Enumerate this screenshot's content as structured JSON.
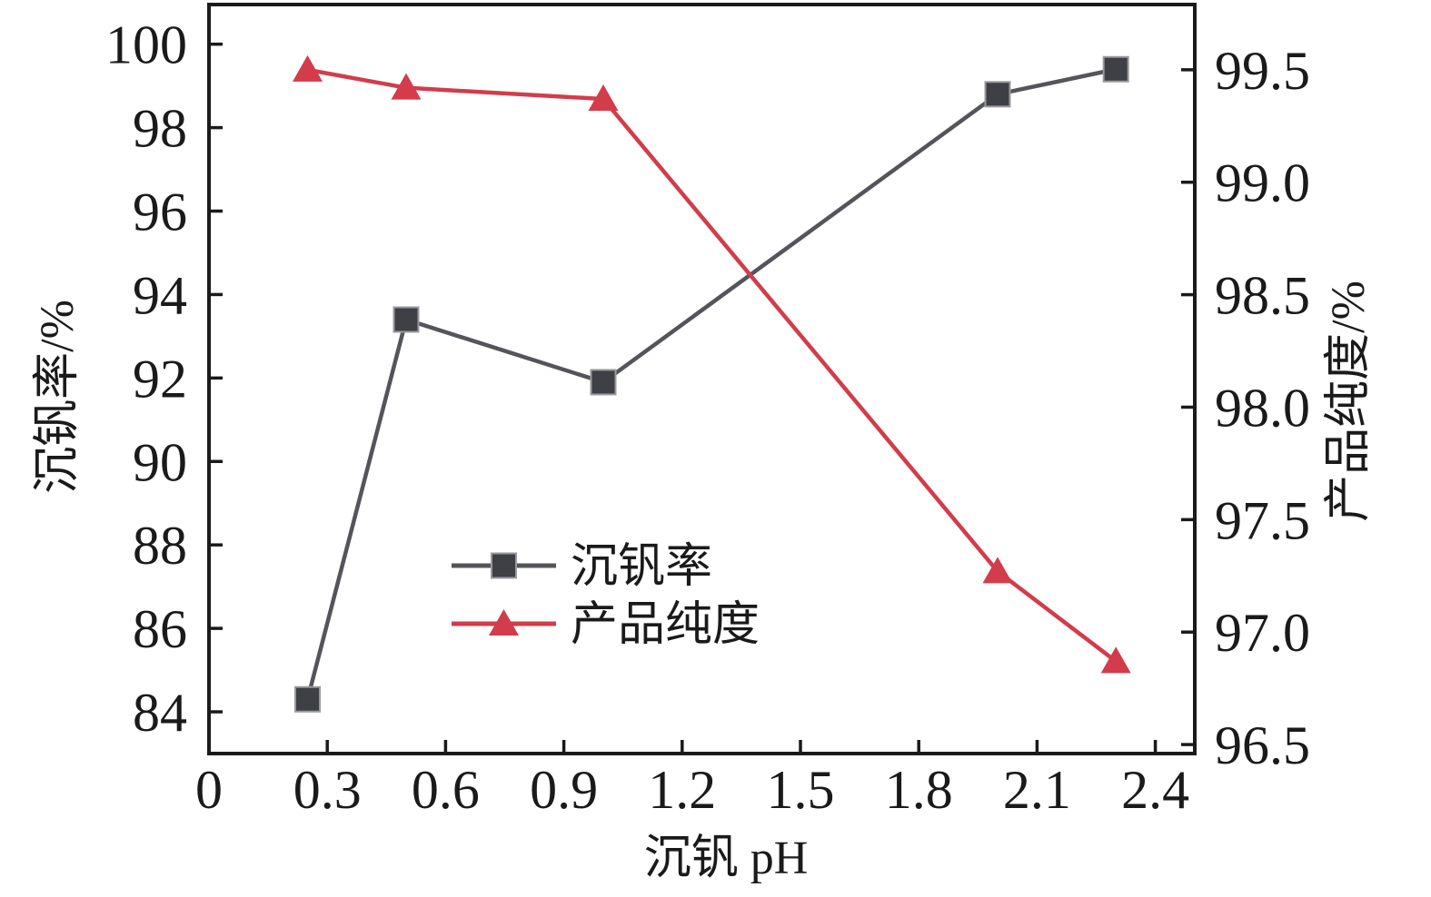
{
  "chart_data": {
    "type": "line",
    "title": "",
    "x_axis": {
      "title": "沉钒 pH",
      "min": 0,
      "max": 2.5,
      "tick_values": [
        0,
        0.3,
        0.6,
        0.9,
        1.2,
        1.5,
        1.8,
        2.1,
        2.4
      ],
      "tick_labels": [
        "0",
        "0.3",
        "0.6",
        "0.9",
        "1.2",
        "1.5",
        "1.8",
        "2.1",
        "2.4"
      ]
    },
    "y_left": {
      "title": "沉钒率/%",
      "min": 83.0,
      "max": 100.95,
      "tick_values": [
        84,
        86,
        88,
        90,
        92,
        94,
        96,
        98,
        100
      ],
      "tick_labels": [
        "84",
        "86",
        "88",
        "90",
        "92",
        "94",
        "96",
        "98",
        "100"
      ]
    },
    "y_right": {
      "title": "产品纯度/%",
      "min": 96.46,
      "max": 99.79,
      "tick_values": [
        96.5,
        97.0,
        97.5,
        98.0,
        98.5,
        99.0,
        99.5
      ],
      "tick_labels": [
        "96.5",
        "97.0",
        "97.5",
        "98.0",
        "98.5",
        "99.0",
        "99.5"
      ]
    },
    "x": [
      0.25,
      0.5,
      1.0,
      2.0,
      2.3
    ],
    "series": [
      {
        "name": "沉钒率",
        "axis": "left",
        "marker": "square",
        "line_color": "#54555a",
        "marker_color": "#3f4045",
        "marker_edge_color": "#9a9a9e",
        "values": [
          84.3,
          93.4,
          91.9,
          98.8,
          99.4
        ]
      },
      {
        "name": "产品纯度",
        "axis": "right",
        "marker": "triangle",
        "line_color": "#d23c4b",
        "marker_color": "#d23c4b",
        "marker_edge_color": "#d23c4b",
        "values": [
          99.5,
          99.42,
          99.37,
          97.27,
          96.87
        ]
      }
    ],
    "grid": false,
    "legend_position": "inside-left-of-center",
    "axis_color": "#1a1a1a",
    "background_color": "#ffffff"
  }
}
